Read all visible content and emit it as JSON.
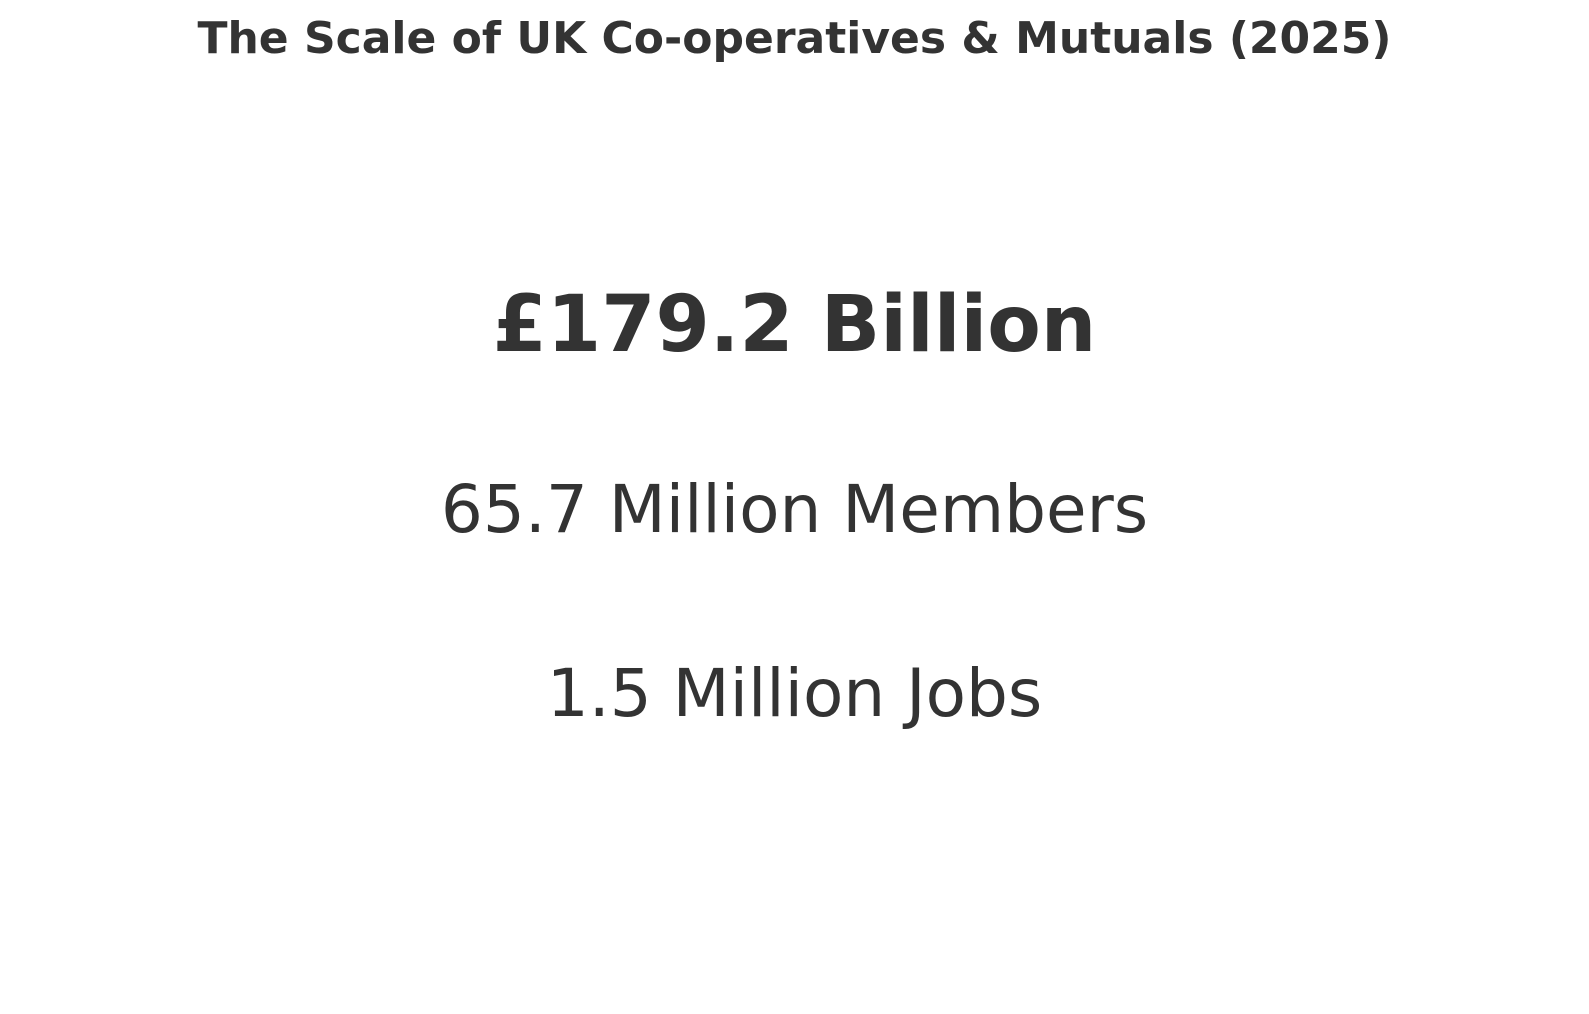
{
  "chart_data": {
    "type": "table",
    "title": "The Scale of UK Co-operatives & Mutuals (2025)",
    "stats": [
      {
        "label": "£179.2 Billion",
        "value": 179.2,
        "unit": "£ Billion",
        "emphasis": "primary"
      },
      {
        "label": "65.7 Million Members",
        "value": 65.7,
        "unit": "Million Members",
        "emphasis": "secondary"
      },
      {
        "label": "1.5 Million Jobs",
        "value": 1.5,
        "unit": "Million Jobs",
        "emphasis": "secondary"
      }
    ],
    "text_color": "#333333",
    "background_color": "#ffffff"
  }
}
